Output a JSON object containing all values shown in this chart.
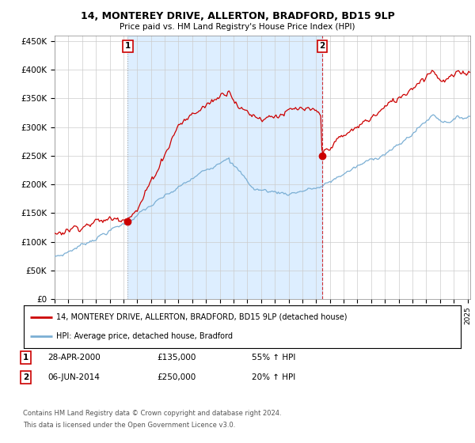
{
  "title": "14, MONTEREY DRIVE, ALLERTON, BRADFORD, BD15 9LP",
  "subtitle": "Price paid vs. HM Land Registry's House Price Index (HPI)",
  "ylabel_ticks": [
    "£0",
    "£50K",
    "£100K",
    "£150K",
    "£200K",
    "£250K",
    "£300K",
    "£350K",
    "£400K",
    "£450K"
  ],
  "ytick_values": [
    0,
    50000,
    100000,
    150000,
    200000,
    250000,
    300000,
    350000,
    400000,
    450000
  ],
  "ylim": [
    0,
    460000
  ],
  "xlim_start": 1995.0,
  "xlim_end": 2025.2,
  "sale1": {
    "date_num": 2000.32,
    "price": 135000,
    "label": "1",
    "date_str": "28-APR-2000",
    "pct": "55% ↑ HPI"
  },
  "sale2": {
    "date_num": 2014.43,
    "price": 250000,
    "label": "2",
    "date_str": "06-JUN-2014",
    "pct": "20% ↑ HPI"
  },
  "legend_line1": "14, MONTEREY DRIVE, ALLERTON, BRADFORD, BD15 9LP (detached house)",
  "legend_line2": "HPI: Average price, detached house, Bradford",
  "footer1": "Contains HM Land Registry data © Crown copyright and database right 2024.",
  "footer2": "This data is licensed under the Open Government Licence v3.0.",
  "red_color": "#cc0000",
  "blue_color": "#7bafd4",
  "shade_color": "#ddeeff",
  "vline1_color": "#aaaaaa",
  "vline2_color": "#cc0000",
  "background_color": "#ffffff",
  "grid_color": "#cccccc"
}
